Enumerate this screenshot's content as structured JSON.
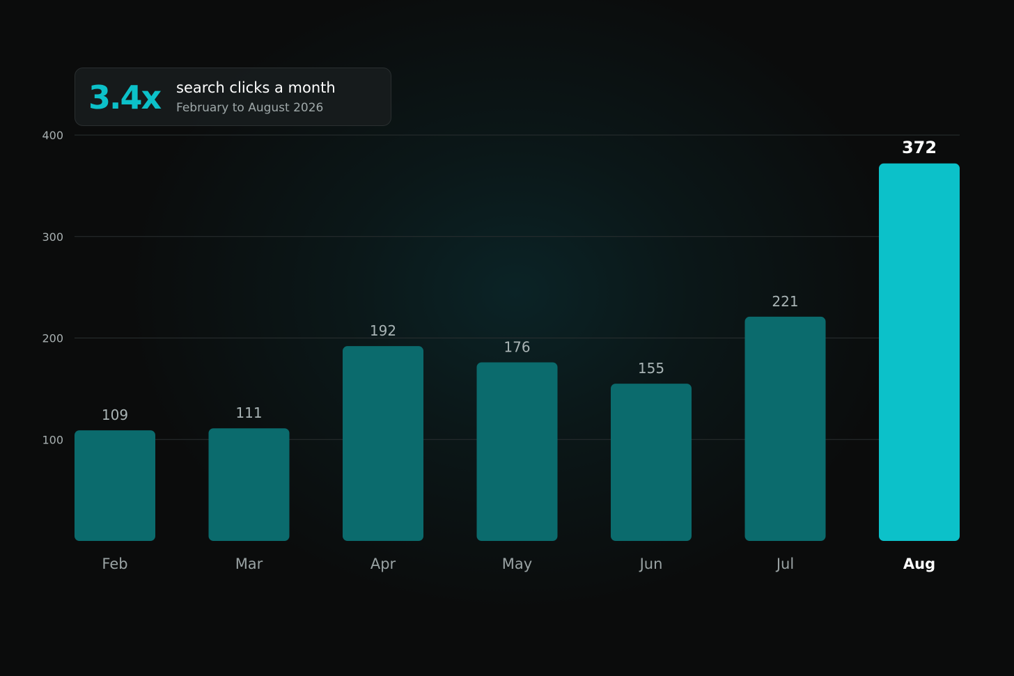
{
  "header": {
    "multiplier": "3.4x",
    "title": "search clicks a month",
    "subtitle": "February to August 2026"
  },
  "colors": {
    "background": "#0b0c0c",
    "bar": "#0b6b6d",
    "highlight_bar": "#0cc1c9",
    "accent_text": "#0cc1c9"
  },
  "chart_data": {
    "type": "bar",
    "categories": [
      "Feb",
      "Mar",
      "Apr",
      "May",
      "Jun",
      "Jul",
      "Aug"
    ],
    "values": [
      109,
      111,
      192,
      176,
      155,
      221,
      372
    ],
    "highlight_index": 6,
    "ylim": [
      0,
      400
    ],
    "yticks": [
      100,
      200,
      300,
      400
    ],
    "grid": true,
    "data_labels": true,
    "title": "",
    "xlabel": "",
    "ylabel": ""
  }
}
